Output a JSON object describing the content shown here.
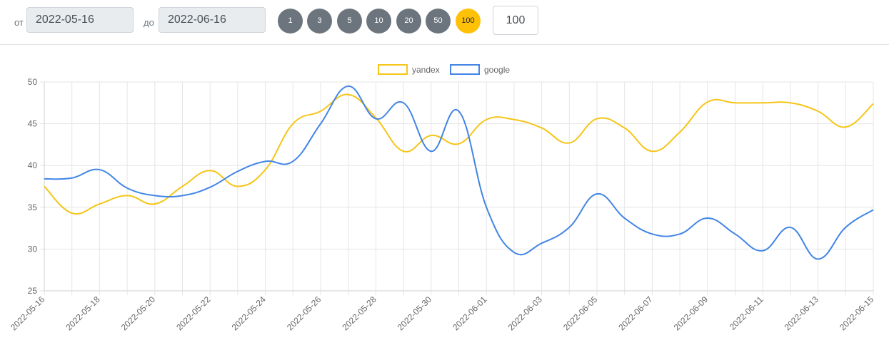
{
  "filters": {
    "from_label": "от",
    "from_value": "2022-05-16",
    "to_label": "до",
    "to_value": "2022-06-16",
    "presets": [
      "1",
      "3",
      "5",
      "10",
      "20",
      "50",
      "100"
    ],
    "active_preset": "100",
    "count_value": "100"
  },
  "colors": {
    "yandex": "#f5c518",
    "google": "#4285e6",
    "grid": "#e5e5e5",
    "tick_text": "#666666"
  },
  "chart_data": {
    "type": "line",
    "x": [
      "2022-05-16",
      "2022-05-17",
      "2022-05-18",
      "2022-05-19",
      "2022-05-20",
      "2022-05-21",
      "2022-05-22",
      "2022-05-23",
      "2022-05-24",
      "2022-05-25",
      "2022-05-26",
      "2022-05-27",
      "2022-05-28",
      "2022-05-29",
      "2022-05-30",
      "2022-05-31",
      "2022-06-01",
      "2022-06-02",
      "2022-06-03",
      "2022-06-04",
      "2022-06-05",
      "2022-06-06",
      "2022-06-07",
      "2022-06-08",
      "2022-06-09",
      "2022-06-10",
      "2022-06-11",
      "2022-06-12",
      "2022-06-13",
      "2022-06-14",
      "2022-06-15"
    ],
    "x_tick_labels": [
      "2022-05-16",
      "2022-05-18",
      "2022-05-20",
      "2022-05-22",
      "2022-05-24",
      "2022-05-26",
      "2022-05-28",
      "2022-05-30",
      "2022-06-01",
      "2022-06-03",
      "2022-06-05",
      "2022-06-07",
      "2022-06-09",
      "2022-06-11",
      "2022-06-13",
      "2022-06-15"
    ],
    "y_ticks": [
      25,
      30,
      35,
      40,
      45,
      50
    ],
    "ylim": [
      25,
      50
    ],
    "legend_position": "top-center",
    "grid": true,
    "series": [
      {
        "name": "yandex",
        "values": [
          37.5,
          34.3,
          35.4,
          36.4,
          35.4,
          37.5,
          39.4,
          37.5,
          39.5,
          45.0,
          46.5,
          48.5,
          45.7,
          41.7,
          43.6,
          42.6,
          45.5,
          45.5,
          44.5,
          42.7,
          45.6,
          44.5,
          41.7,
          44.0,
          47.6,
          47.5,
          47.5,
          47.5,
          46.5,
          44.6,
          47.4
        ]
      },
      {
        "name": "google",
        "values": [
          38.4,
          38.5,
          39.5,
          37.3,
          36.4,
          36.4,
          37.4,
          39.3,
          40.5,
          40.5,
          45.0,
          49.5,
          45.6,
          47.5,
          41.7,
          46.5,
          35.0,
          29.6,
          30.7,
          32.6,
          36.6,
          33.7,
          31.8,
          31.8,
          33.7,
          31.8,
          29.8,
          32.6,
          28.8,
          32.6,
          34.7
        ]
      }
    ]
  }
}
